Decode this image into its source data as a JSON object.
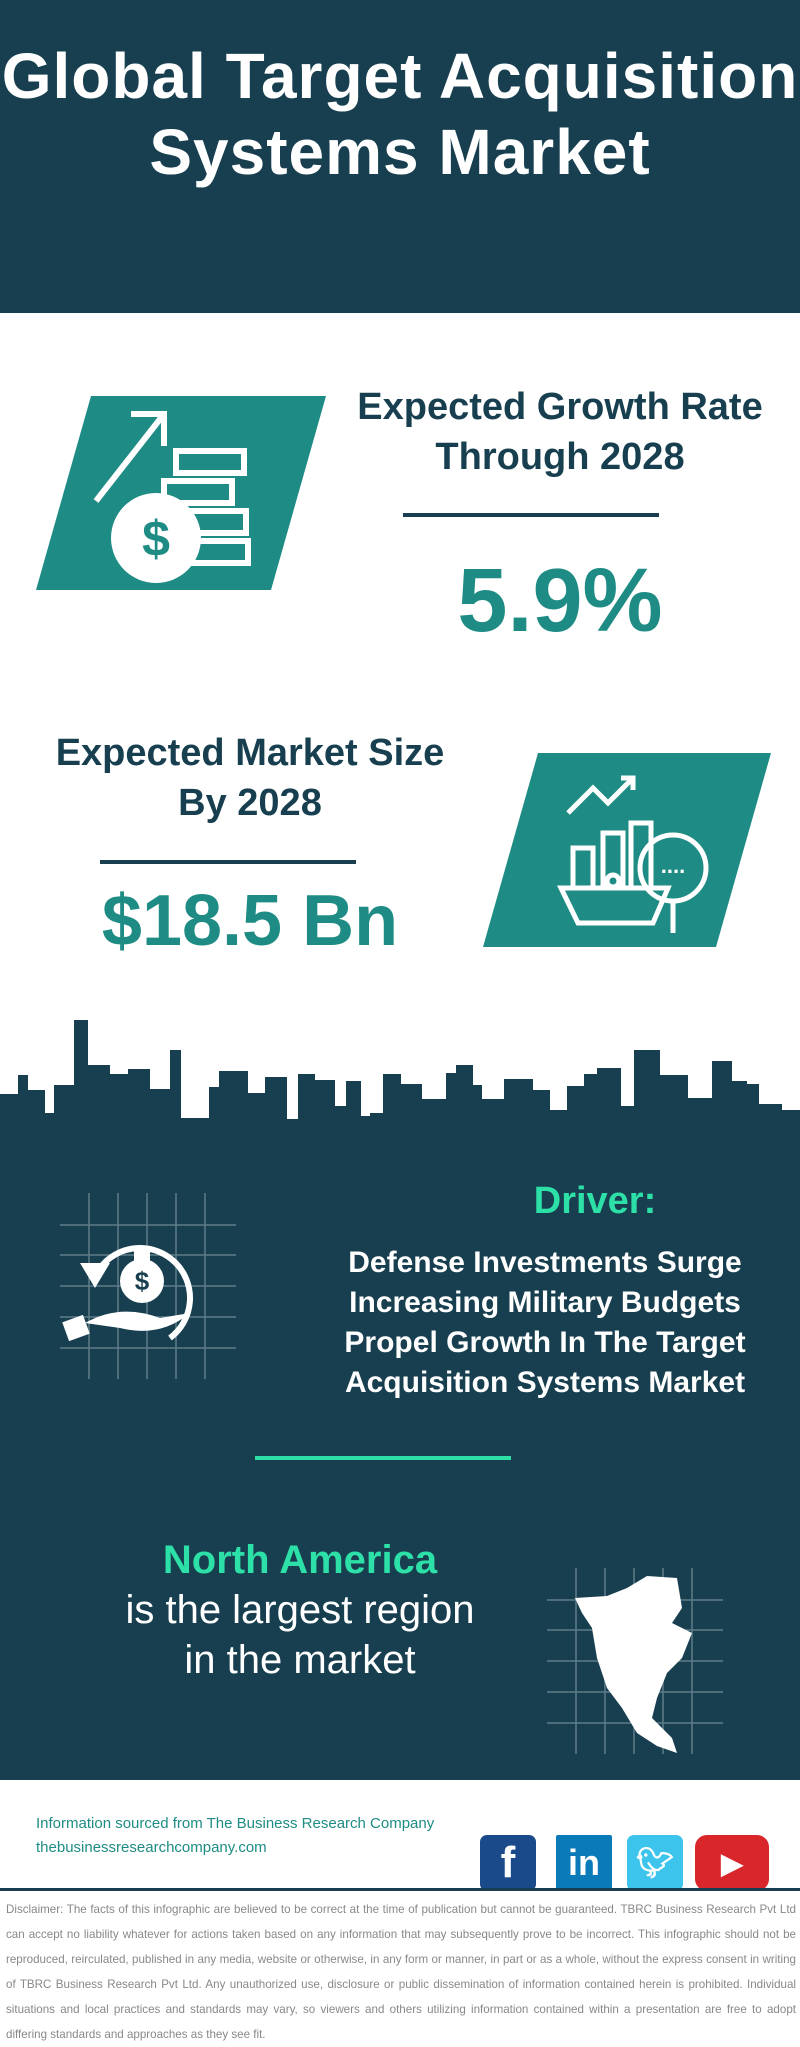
{
  "header": {
    "title": "Global Target Acquisition Systems Market"
  },
  "growth": {
    "label": "Expected Growth Rate Through 2028",
    "value": "5.9%",
    "icon": "money-growth-icon"
  },
  "market_size": {
    "label": "Expected Market Size By 2028",
    "value": "$18.5 Bn",
    "icon": "market-analysis-icon"
  },
  "driver": {
    "title": "Driver:",
    "text": "Defense Investments Surge Increasing Military Budgets Propel Growth In The Target Acquisition Systems Market",
    "icon": "money-bag-hand-icon"
  },
  "region": {
    "name": "North America",
    "text": "is the largest region in the market",
    "icon": "north-america-map-icon"
  },
  "footer": {
    "source": "Information sourced from The Business Research Company",
    "url": "thebusinessresearchcompany.com",
    "social": [
      {
        "name": "facebook",
        "color": "#1b4a8a"
      },
      {
        "name": "linkedin",
        "color": "#0a7bb8"
      },
      {
        "name": "twitter",
        "color": "#3cc4ec"
      },
      {
        "name": "youtube",
        "color": "#d8262a"
      }
    ]
  },
  "disclaimer": "Disclaimer: The facts of this infographic are believed to be correct at the time of publication but cannot be guaranteed. TBRC Business Research Pvt Ltd can accept no liability whatever for actions taken based on any information that may subsequently prove to be incorrect. This infographic should not be reproduced, reirculated, published in any media, website or otherwise, in any form or manner, in part or as a whole, without the express consent in writing of TBRC Business Research Pvt Ltd. Any unauthorized use, disclosure or public dissemination of information contained herein is prohibited. Individual situations and local practices and standards may vary, so viewers and others utilizing information contained within a presentation are free to adopt differing standards and approaches as they see fit.",
  "colors": {
    "dark": "#173f4f",
    "teal": "#1e8c84",
    "mint": "#2de0a7"
  }
}
